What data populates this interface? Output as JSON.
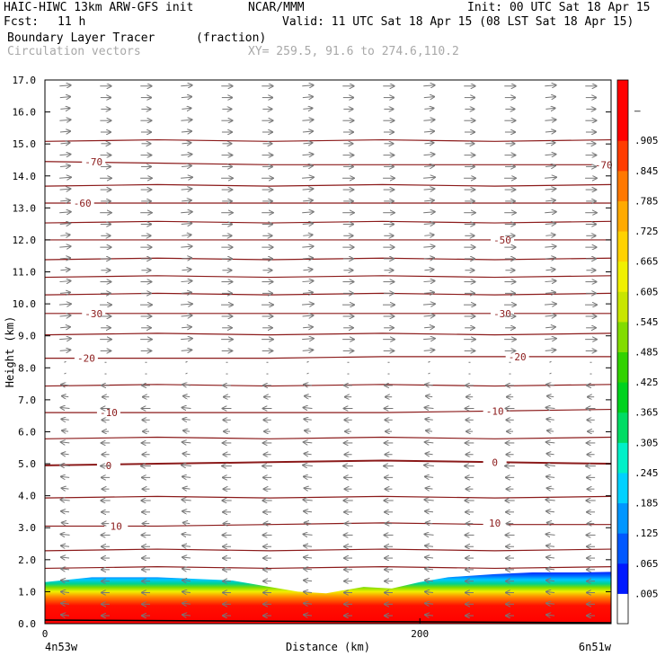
{
  "header": {
    "model": "HAIC-HIWC 13km ARW-GFS init",
    "org": "NCAR/MMM",
    "init": "Init: 00 UTC Sat 18 Apr 15",
    "fcst_label": "Fcst:",
    "fcst_value": "11 h",
    "valid": "Valid: 11 UTC Sat 18 Apr 15 (08 LST Sat 18 Apr 15)",
    "field": "Boundary Layer Tracer",
    "field_units": "(fraction)",
    "vectors": "Circulation vectors",
    "xy": "XY= 259.5, 91.6 to 274.6,110.2"
  },
  "chart_data": {
    "type": "heatmap",
    "title": "Boundary Layer Tracer",
    "units": "fraction",
    "xlabel": "Distance (km)",
    "ylabel": "Height (km)",
    "xlim": [
      0,
      302
    ],
    "ylim": [
      0,
      17
    ],
    "x_ticks": [
      {
        "value": 0,
        "label": "0"
      },
      {
        "value": 200,
        "label": "200"
      }
    ],
    "x_end_labels": {
      "left": "4n53w",
      "right": "6n51w"
    },
    "y_ticks": [
      0,
      1,
      2,
      3,
      4,
      5,
      6,
      7,
      8,
      9,
      10,
      11,
      12,
      13,
      14,
      15,
      16,
      17
    ],
    "y_tick_labels": [
      "0.0",
      "1.0",
      "2.0",
      "3.0",
      "4.0",
      "5.0",
      "6.0",
      "7.0",
      "8.0",
      "9.0",
      "10.0",
      "11.0",
      "12.0",
      "13.0",
      "14.0",
      "15.0",
      "16.0",
      "17.0"
    ],
    "colorbar": {
      "labels": [
        ".005",
        ".065",
        ".125",
        ".185",
        ".245",
        ".305",
        ".365",
        ".425",
        ".485",
        ".545",
        ".605",
        ".665",
        ".725",
        ".785",
        ".845",
        ".905",
        "–"
      ],
      "colors": [
        "#ffffff",
        "#0019ff",
        "#0058ff",
        "#0096ff",
        "#00d1ff",
        "#00f0c8",
        "#00dc64",
        "#00d21e",
        "#32d200",
        "#82dc00",
        "#c8e600",
        "#f0f000",
        "#ffd200",
        "#ffaa00",
        "#ff7800",
        "#ff3c00",
        "#ff0000",
        "#ff0000"
      ]
    },
    "series": [
      {
        "name": "Boundary Layer Tracer",
        "boundary_layer_top_km": [
          {
            "x": 0,
            "y": 1.3
          },
          {
            "x": 25,
            "y": 1.45
          },
          {
            "x": 60,
            "y": 1.45
          },
          {
            "x": 100,
            "y": 1.35
          },
          {
            "x": 120,
            "y": 1.15
          },
          {
            "x": 135,
            "y": 1.0
          },
          {
            "x": 150,
            "y": 0.95
          },
          {
            "x": 170,
            "y": 1.15
          },
          {
            "x": 185,
            "y": 1.1
          },
          {
            "x": 200,
            "y": 1.3
          },
          {
            "x": 215,
            "y": 1.45
          },
          {
            "x": 240,
            "y": 1.55
          },
          {
            "x": 260,
            "y": 1.6
          },
          {
            "x": 285,
            "y": 1.6
          },
          {
            "x": 302,
            "y": 1.62
          }
        ]
      },
      {
        "name": "Temperature contours",
        "contours": [
          {
            "label": "10",
            "y": [
              3.05,
              3.05,
              3.1,
              3.15,
              3.1,
              3.1
            ]
          },
          {
            "label": "0",
            "y": [
              4.95,
              5.0,
              5.05,
              5.1,
              5.05,
              5.0
            ]
          },
          {
            "label": "-10",
            "y": [
              6.6,
              6.6,
              6.6,
              6.6,
              6.65,
              6.7
            ]
          },
          {
            "label": "-20",
            "y": [
              8.3,
              8.3,
              8.3,
              8.35,
              8.35,
              8.35
            ]
          },
          {
            "label": "-30",
            "y": [
              9.7,
              9.7,
              9.7,
              9.7,
              9.7,
              9.7
            ]
          },
          {
            "label": "-50",
            "y": [
              12.0,
              12.0,
              12.0,
              12.0,
              12.0,
              12.0
            ]
          },
          {
            "label": "-60",
            "y": [
              13.15,
              13.15,
              13.15,
              13.15,
              13.15,
              13.15
            ]
          },
          {
            "label": "-70",
            "y": [
              14.45,
              14.4,
              14.35,
              14.35,
              14.35,
              14.35
            ]
          }
        ],
        "contour_x": [
          0,
          60,
          120,
          180,
          240,
          302
        ],
        "label_positions": [
          {
            "label": "10",
            "x": 38,
            "y": 3.05
          },
          {
            "label": "10",
            "x": 240,
            "y": 3.15
          },
          {
            "label": "0",
            "x": 34,
            "y": 4.95
          },
          {
            "label": "0",
            "x": 240,
            "y": 5.05
          },
          {
            "label": "-10",
            "x": 34,
            "y": 6.6
          },
          {
            "label": "-10",
            "x": 240,
            "y": 6.65
          },
          {
            "label": "-20",
            "x": 22,
            "y": 8.3
          },
          {
            "label": "-20",
            "x": 252,
            "y": 8.35
          },
          {
            "label": "-30",
            "x": 26,
            "y": 9.7
          },
          {
            "label": "-30",
            "x": 244,
            "y": 9.7
          },
          {
            "label": "-50",
            "x": 244,
            "y": 12.0
          },
          {
            "label": "-60",
            "x": 20,
            "y": 13.15
          },
          {
            "label": "-70",
            "x": 26,
            "y": 14.45
          },
          {
            "label": "-70",
            "x": 298,
            "y": 14.35
          }
        ]
      }
    ],
    "grid": false,
    "legend": "right"
  }
}
